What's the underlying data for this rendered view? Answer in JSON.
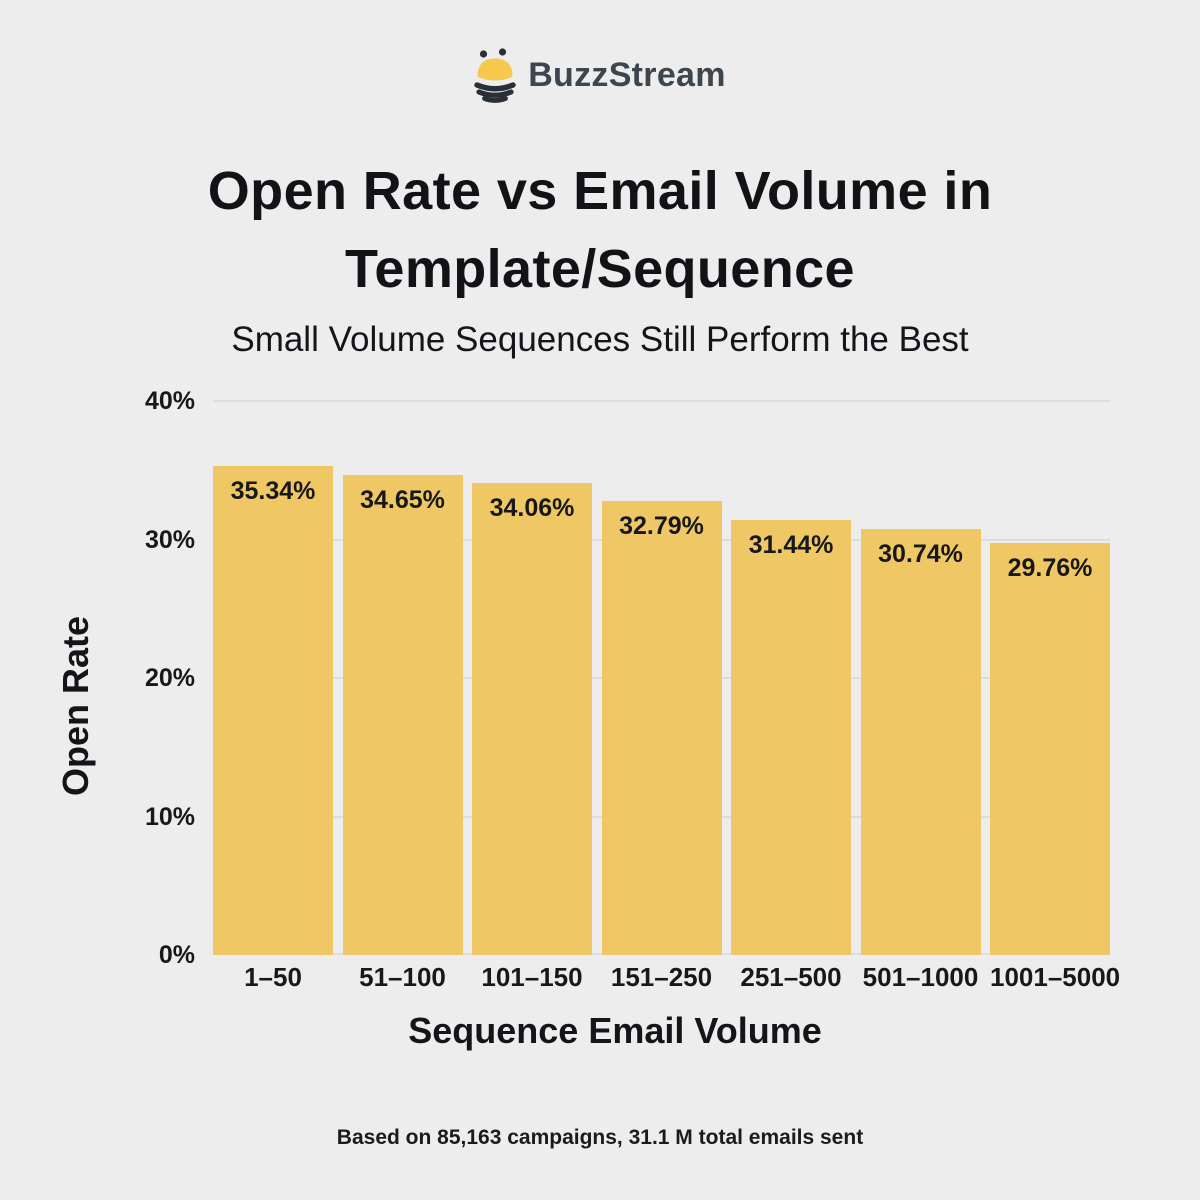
{
  "brand": {
    "name": "BuzzStream",
    "icon": "bee-icon"
  },
  "title": {
    "line1": "Open Rate vs Email Volume in",
    "line2": "Template/Sequence"
  },
  "subtitle": "Small Volume Sequences Still Perform the Best",
  "footnote": "Based on 85,163 campaigns, 31.1 M total emails sent",
  "colors": {
    "background": "#EDEDEE",
    "bar": "#F0C765",
    "gridline": "#DCDDDE",
    "text": "#141519",
    "brand_text": "#3D464E",
    "brand_yellow": "#F6C94D",
    "brand_dark": "#2A2E35"
  },
  "chart_data": {
    "type": "bar",
    "title": "Open Rate vs Email Volume in Template/Sequence",
    "subtitle": "Small Volume Sequences Still Perform the Best",
    "categories": [
      "1–50",
      "51–100",
      "101–150",
      "151–250",
      "251–500",
      "501–1000",
      "1001–5000"
    ],
    "values": [
      35.34,
      34.65,
      34.06,
      32.79,
      31.44,
      30.74,
      29.76
    ],
    "data_labels": [
      "35.34%",
      "34.65%",
      "34.06%",
      "32.79%",
      "31.44%",
      "30.74%",
      "29.76%"
    ],
    "xlabel": "Sequence Email Volume",
    "ylabel": "Open Rate",
    "ylim": [
      0,
      40
    ],
    "yticks": [
      0,
      10,
      20,
      30,
      40
    ],
    "ytick_labels": [
      "0%",
      "10%",
      "20%",
      "30%",
      "40%"
    ],
    "grid": "horizontal",
    "legend": "none",
    "bar_color": "#F0C765"
  }
}
